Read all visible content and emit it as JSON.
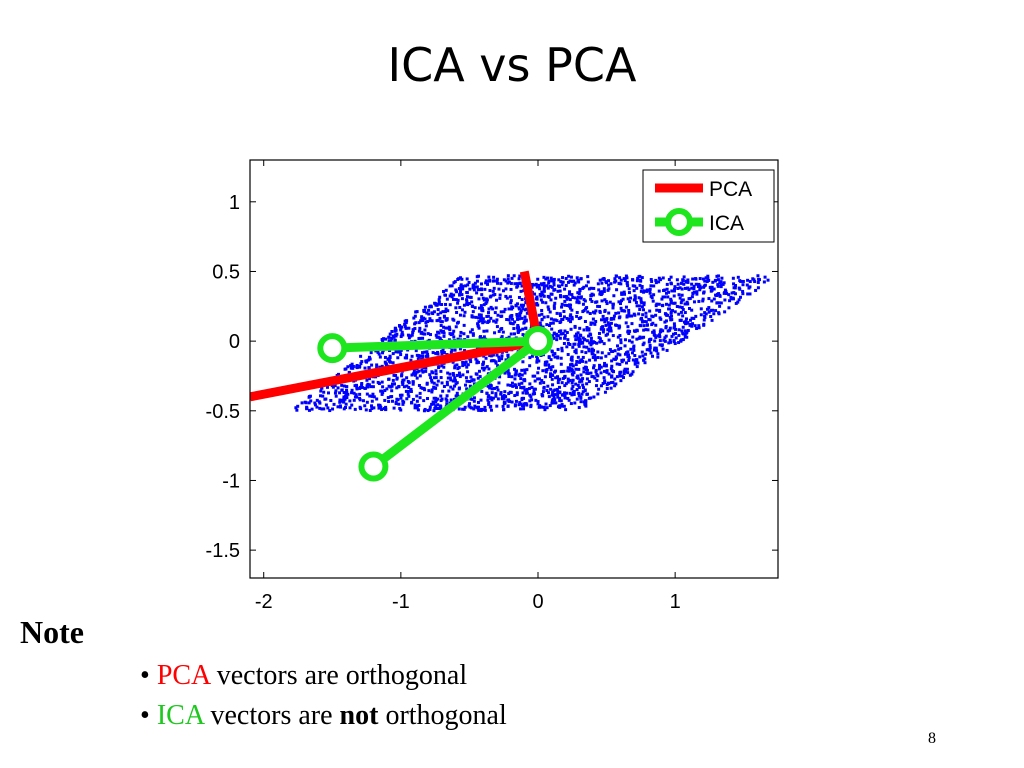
{
  "slide": {
    "title": "ICA vs PCA",
    "note_heading": "Note",
    "bullets": [
      {
        "marker": "•",
        "keyword": "PCA",
        "keyword_color": "#ff0000",
        "text_before_emphasis": " vectors are orthogonal",
        "emphasis": "",
        "text_after": ""
      },
      {
        "marker": "•",
        "keyword": "ICA",
        "keyword_color": "#1ec81e",
        "text_before_emphasis": " vectors are ",
        "emphasis": "not",
        "text_after": " orthogonal"
      }
    ],
    "page_number": "8"
  },
  "chart_data": {
    "type": "scatter",
    "xlim": [
      -2.1,
      1.75
    ],
    "ylim": [
      -1.7,
      1.3
    ],
    "x_ticks": [
      -2,
      -1,
      0,
      1
    ],
    "y_ticks": [
      1,
      0.5,
      0,
      -0.5,
      -1,
      -1.5
    ],
    "x_tick_labels": [
      "-2",
      "-1",
      "0",
      "1"
    ],
    "y_tick_labels": [
      "1",
      "0.5",
      "0",
      "-0.5",
      "-1",
      "-1.5"
    ],
    "grid": false,
    "legend_position": "top-right",
    "scatter": {
      "name": "",
      "color": "#0000ff",
      "region": "parallelogram",
      "y_range": [
        -0.5,
        0.47
      ],
      "left_edge_points": [
        [
          -1.8,
          -0.5
        ],
        [
          -0.65,
          0.4
        ]
      ],
      "right_edge_points": [
        [
          0.45,
          -0.4
        ],
        [
          1.75,
          0.47
        ]
      ]
    },
    "series": [
      {
        "name": "PCA",
        "color": "#ff0000",
        "marker": "none",
        "lines": [
          [
            [
              0,
              0
            ],
            [
              -2.1,
              -0.4
            ]
          ],
          [
            [
              0,
              0
            ],
            [
              -0.1,
              0.5
            ]
          ]
        ]
      },
      {
        "name": "ICA",
        "color": "#1ee61e",
        "marker": "circle",
        "lines": [
          [
            [
              0,
              0
            ],
            [
              -1.5,
              -0.05
            ]
          ],
          [
            [
              0,
              0
            ],
            [
              -1.2,
              -0.9
            ]
          ]
        ]
      }
    ]
  }
}
